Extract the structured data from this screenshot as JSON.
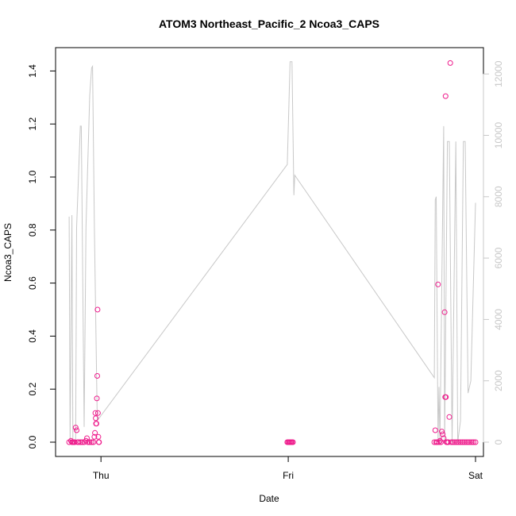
{
  "chart_data": {
    "type": "scatter",
    "title": "ATOM3 Northeast_Pacific_2 Ncoa3_CAPS",
    "xlabel": "Date",
    "ylabel": "Ncoa3_CAPS",
    "x_ticks": [
      "Thu",
      "Fri",
      "Sat"
    ],
    "x_range_days": [
      -0.2,
      2.0
    ],
    "ylim": [
      0,
      1.45
    ],
    "y_ticks": [
      0.0,
      0.2,
      0.4,
      0.6,
      0.8,
      1.0,
      1.2,
      1.4
    ],
    "y_ticks_right": [
      0,
      2000,
      4000,
      6000,
      8000,
      10000,
      12000
    ],
    "ylim_right": [
      0,
      12500
    ],
    "grid": false,
    "points_color": "#ee1c8c",
    "line_color": "#c8c8c8",
    "axis_color": "#000000",
    "right_axis_color": "#c8c8c8",
    "points": [
      {
        "x": -0.17,
        "y": 0.0
      },
      {
        "x": -0.16,
        "y": 0.005
      },
      {
        "x": -0.155,
        "y": 0.0
      },
      {
        "x": -0.15,
        "y": 0.0
      },
      {
        "x": -0.145,
        "y": 0.0
      },
      {
        "x": -0.14,
        "y": 0.0
      },
      {
        "x": -0.135,
        "y": 0.055
      },
      {
        "x": -0.13,
        "y": 0.045
      },
      {
        "x": -0.125,
        "y": 0.0
      },
      {
        "x": -0.12,
        "y": 0.0
      },
      {
        "x": -0.11,
        "y": 0.0
      },
      {
        "x": -0.1,
        "y": 0.0
      },
      {
        "x": -0.09,
        "y": 0.0
      },
      {
        "x": -0.08,
        "y": 0.005
      },
      {
        "x": -0.075,
        "y": 0.015
      },
      {
        "x": -0.07,
        "y": 0.0
      },
      {
        "x": -0.06,
        "y": 0.0
      },
      {
        "x": -0.05,
        "y": 0.0
      },
      {
        "x": -0.04,
        "y": 0.0
      },
      {
        "x": -0.035,
        "y": 0.02
      },
      {
        "x": -0.032,
        "y": 0.035
      },
      {
        "x": -0.03,
        "y": 0.11
      },
      {
        "x": -0.028,
        "y": 0.09
      },
      {
        "x": -0.026,
        "y": 0.07
      },
      {
        "x": -0.024,
        "y": 0.07
      },
      {
        "x": -0.022,
        "y": 0.165
      },
      {
        "x": -0.02,
        "y": 0.25
      },
      {
        "x": -0.018,
        "y": 0.5
      },
      {
        "x": -0.016,
        "y": 0.11
      },
      {
        "x": -0.014,
        "y": 0.02
      },
      {
        "x": -0.012,
        "y": 0.0
      },
      {
        "x": -0.01,
        "y": 0.0
      },
      {
        "x": 0.995,
        "y": 0.0
      },
      {
        "x": 1.0,
        "y": 0.0
      },
      {
        "x": 1.005,
        "y": 0.0
      },
      {
        "x": 1.01,
        "y": 0.0
      },
      {
        "x": 1.015,
        "y": 0.0
      },
      {
        "x": 1.02,
        "y": 0.0
      },
      {
        "x": 1.025,
        "y": 0.0
      },
      {
        "x": 1.78,
        "y": 0.0
      },
      {
        "x": 1.785,
        "y": 0.045
      },
      {
        "x": 1.79,
        "y": 0.0
      },
      {
        "x": 1.795,
        "y": 0.0
      },
      {
        "x": 1.8,
        "y": 0.595
      },
      {
        "x": 1.805,
        "y": 0.0
      },
      {
        "x": 1.81,
        "y": 0.005
      },
      {
        "x": 1.815,
        "y": 0.0
      },
      {
        "x": 1.82,
        "y": 0.04
      },
      {
        "x": 1.825,
        "y": 0.03
      },
      {
        "x": 1.83,
        "y": 0.015
      },
      {
        "x": 1.835,
        "y": 0.49
      },
      {
        "x": 1.838,
        "y": 0.17
      },
      {
        "x": 1.84,
        "y": 1.305
      },
      {
        "x": 1.842,
        "y": 0.17
      },
      {
        "x": 1.845,
        "y": 0.0
      },
      {
        "x": 1.85,
        "y": 0.0
      },
      {
        "x": 1.855,
        "y": 0.0
      },
      {
        "x": 1.86,
        "y": 0.095
      },
      {
        "x": 1.865,
        "y": 1.43
      },
      {
        "x": 1.87,
        "y": 0.0
      },
      {
        "x": 1.88,
        "y": 0.0
      },
      {
        "x": 1.89,
        "y": 0.0
      },
      {
        "x": 1.9,
        "y": 0.0
      },
      {
        "x": 1.91,
        "y": 0.0
      },
      {
        "x": 1.92,
        "y": 0.0
      },
      {
        "x": 1.93,
        "y": 0.0
      },
      {
        "x": 1.94,
        "y": 0.0
      },
      {
        "x": 1.95,
        "y": 0.0
      },
      {
        "x": 1.96,
        "y": 0.0
      },
      {
        "x": 1.97,
        "y": 0.0
      },
      {
        "x": 1.98,
        "y": 0.0
      },
      {
        "x": 1.99,
        "y": 0.0
      },
      {
        "x": 2.0,
        "y": 0.0
      }
    ],
    "line": [
      {
        "x": -0.17,
        "y": 7350
      },
      {
        "x": -0.165,
        "y": 0
      },
      {
        "x": -0.155,
        "y": 7400
      },
      {
        "x": -0.15,
        "y": 0
      },
      {
        "x": -0.135,
        "y": 0
      },
      {
        "x": -0.13,
        "y": 7000
      },
      {
        "x": -0.11,
        "y": 10300
      },
      {
        "x": -0.105,
        "y": 10300
      },
      {
        "x": -0.09,
        "y": 500
      },
      {
        "x": -0.08,
        "y": 7000
      },
      {
        "x": -0.06,
        "y": 11300
      },
      {
        "x": -0.05,
        "y": 12200
      },
      {
        "x": -0.045,
        "y": 12250
      },
      {
        "x": -0.035,
        "y": 7000
      },
      {
        "x": -0.02,
        "y": 700
      },
      {
        "x": 0.995,
        "y": 9050
      },
      {
        "x": 1.01,
        "y": 12400
      },
      {
        "x": 1.02,
        "y": 12400
      },
      {
        "x": 1.03,
        "y": 8050
      },
      {
        "x": 1.035,
        "y": 8700
      },
      {
        "x": 1.78,
        "y": 2100
      },
      {
        "x": 1.785,
        "y": 7900
      },
      {
        "x": 1.79,
        "y": 8000
      },
      {
        "x": 1.8,
        "y": 0
      },
      {
        "x": 1.805,
        "y": 1800
      },
      {
        "x": 1.81,
        "y": 0
      },
      {
        "x": 1.83,
        "y": 10300
      },
      {
        "x": 1.835,
        "y": 0
      },
      {
        "x": 1.85,
        "y": 9800
      },
      {
        "x": 1.86,
        "y": 9800
      },
      {
        "x": 1.875,
        "y": 0
      },
      {
        "x": 1.895,
        "y": 9800
      },
      {
        "x": 1.905,
        "y": 0
      },
      {
        "x": 1.92,
        "y": 700
      },
      {
        "x": 1.935,
        "y": 9800
      },
      {
        "x": 1.945,
        "y": 9800
      },
      {
        "x": 1.96,
        "y": 1600
      },
      {
        "x": 1.975,
        "y": 2000
      },
      {
        "x": 2.0,
        "y": 7800
      }
    ]
  }
}
